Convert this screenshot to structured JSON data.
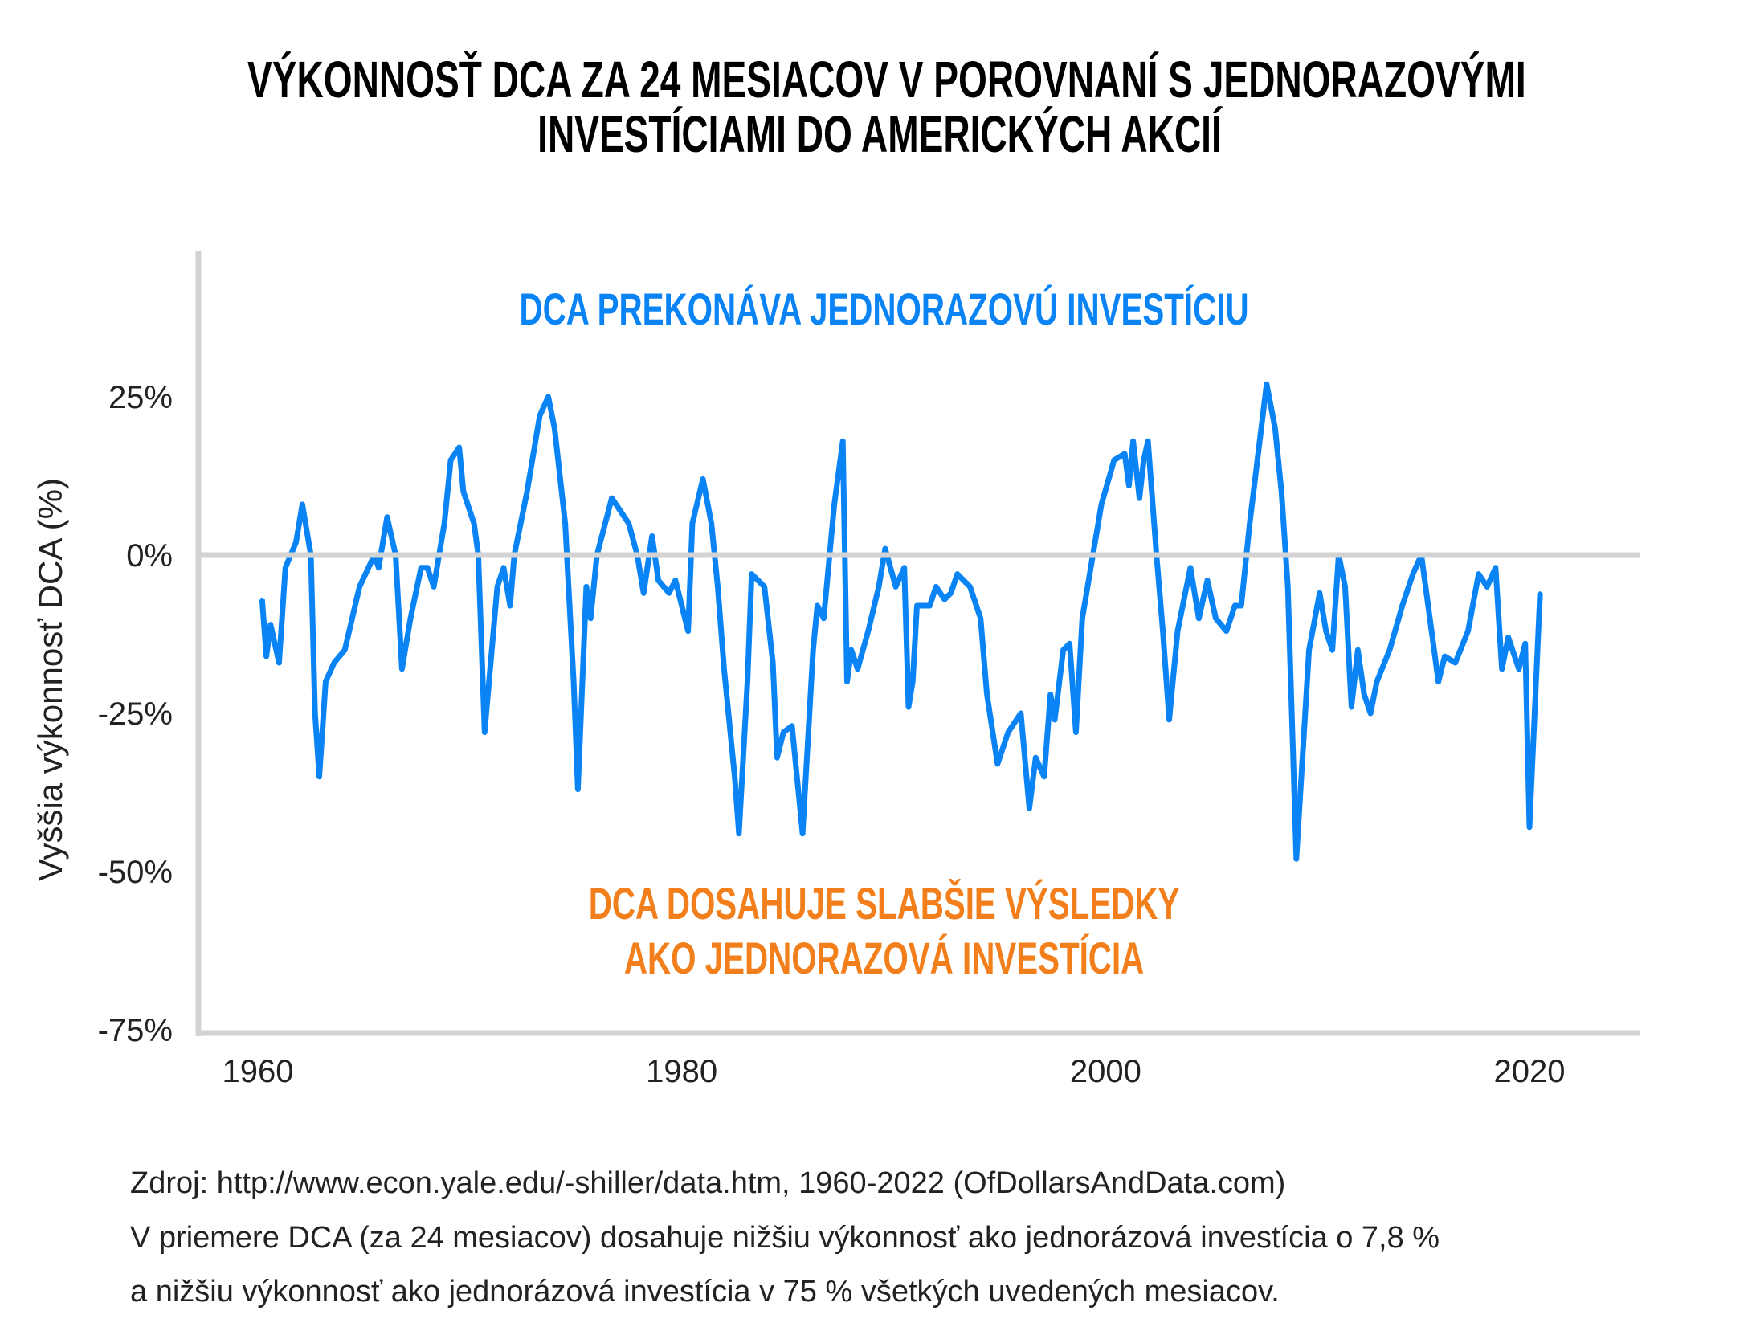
{
  "title": {
    "line1": "VÝKONNOSŤ DCA ZA 24 MESIACOV V POROVNANÍ S JEDNORAZOVÝMI",
    "line2": "INVESTÍCIAMI DO AMERICKÝCH AKCIÍ"
  },
  "annotations": {
    "top": "DCA PREKONÁVA JEDNORAZOVÚ INVESTÍCIU",
    "bottom_line1": "DCA DOSAHUJE SLABŠIE VÝSLEDKY",
    "bottom_line2": "AKO JEDNORAZOVÁ INVESTÍCIA"
  },
  "footer": {
    "source": "Zdroj: http://www.econ.yale.edu/-shiller/data.htm, 1960-2022 (OfDollarsAndData.com)",
    "note_line1": "V priemere DCA (za 24 mesiacov) dosahuje nižšiu výkonnosť ako jednorázová investícia o 7,8 %",
    "note_line2": "a nižšiu výkonnosť ako jednorázová investícia v 75 % všetkých uvedených mesiacov."
  },
  "colors": {
    "series": "#0a84f5",
    "positive_label": "#0a84f5",
    "negative_label": "#f27f1b",
    "axis": "#d3d3d3"
  },
  "chart_data": {
    "type": "line",
    "ylabel": "Vyššia výkonnosť DCA (%)",
    "xlabel": "",
    "xlim": [
      1958,
      2025
    ],
    "ylim": [
      -75,
      40
    ],
    "x_ticks": [
      {
        "value": 1960,
        "label": "1960"
      },
      {
        "value": 1980,
        "label": "1980"
      },
      {
        "value": 2000,
        "label": "2000"
      },
      {
        "value": 2020,
        "label": "2020"
      }
    ],
    "y_ticks": [
      {
        "value": 25,
        "label": "25%"
      },
      {
        "value": 0,
        "label": "0%"
      },
      {
        "value": -25,
        "label": "-25%"
      },
      {
        "value": -50,
        "label": "-50%"
      },
      {
        "value": -75,
        "label": "-75%"
      }
    ],
    "grid": false,
    "reference_line": 0,
    "points": [
      [
        1960.2,
        -7
      ],
      [
        1960.4,
        -16
      ],
      [
        1960.6,
        -11
      ],
      [
        1961.0,
        -17
      ],
      [
        1961.3,
        -2
      ],
      [
        1961.8,
        2
      ],
      [
        1962.1,
        8
      ],
      [
        1962.5,
        0
      ],
      [
        1962.7,
        -25
      ],
      [
        1962.9,
        -35
      ],
      [
        1963.2,
        -20
      ],
      [
        1963.6,
        -17
      ],
      [
        1964.1,
        -15
      ],
      [
        1964.8,
        -5
      ],
      [
        1965.5,
        0
      ],
      [
        1965.7,
        -2
      ],
      [
        1966.1,
        6
      ],
      [
        1966.5,
        0
      ],
      [
        1966.8,
        -18
      ],
      [
        1967.2,
        -10
      ],
      [
        1967.7,
        -2
      ],
      [
        1968.0,
        -2
      ],
      [
        1968.3,
        -5
      ],
      [
        1968.8,
        5
      ],
      [
        1969.1,
        15
      ],
      [
        1969.5,
        17
      ],
      [
        1969.7,
        10
      ],
      [
        1970.2,
        5
      ],
      [
        1970.4,
        0
      ],
      [
        1970.7,
        -28
      ],
      [
        1971.3,
        -5
      ],
      [
        1971.6,
        -2
      ],
      [
        1971.9,
        -8
      ],
      [
        1972.1,
        0
      ],
      [
        1972.7,
        10
      ],
      [
        1973.3,
        22
      ],
      [
        1973.7,
        25
      ],
      [
        1974.0,
        20
      ],
      [
        1974.5,
        5
      ],
      [
        1974.9,
        -20
      ],
      [
        1975.1,
        -37
      ],
      [
        1975.5,
        -5
      ],
      [
        1975.7,
        -10
      ],
      [
        1976.0,
        0
      ],
      [
        1976.7,
        9
      ],
      [
        1977.5,
        5
      ],
      [
        1977.9,
        0
      ],
      [
        1978.2,
        -6
      ],
      [
        1978.6,
        3
      ],
      [
        1978.9,
        -4
      ],
      [
        1979.4,
        -6
      ],
      [
        1979.7,
        -4
      ],
      [
        1980.0,
        -8
      ],
      [
        1980.3,
        -12
      ],
      [
        1980.5,
        5
      ],
      [
        1981.0,
        12
      ],
      [
        1981.4,
        5
      ],
      [
        1981.7,
        -5
      ],
      [
        1982.0,
        -18
      ],
      [
        1982.5,
        -35
      ],
      [
        1982.7,
        -44
      ],
      [
        1983.1,
        -20
      ],
      [
        1983.3,
        -3
      ],
      [
        1983.9,
        -5
      ],
      [
        1984.3,
        -17
      ],
      [
        1984.5,
        -32
      ],
      [
        1984.8,
        -28
      ],
      [
        1985.2,
        -27
      ],
      [
        1985.7,
        -44
      ],
      [
        1986.2,
        -15
      ],
      [
        1986.4,
        -8
      ],
      [
        1986.7,
        -10
      ],
      [
        1987.2,
        8
      ],
      [
        1987.6,
        18
      ],
      [
        1987.8,
        -20
      ],
      [
        1988.0,
        -15
      ],
      [
        1988.3,
        -18
      ],
      [
        1988.8,
        -12
      ],
      [
        1989.3,
        -5
      ],
      [
        1989.6,
        1
      ],
      [
        1990.1,
        -5
      ],
      [
        1990.5,
        -2
      ],
      [
        1990.7,
        -24
      ],
      [
        1990.9,
        -20
      ],
      [
        1991.1,
        -8
      ],
      [
        1991.7,
        -8
      ],
      [
        1992.0,
        -5
      ],
      [
        1992.4,
        -7
      ],
      [
        1992.7,
        -6
      ],
      [
        1993.0,
        -3
      ],
      [
        1993.6,
        -5
      ],
      [
        1994.1,
        -10
      ],
      [
        1994.4,
        -22
      ],
      [
        1994.9,
        -33
      ],
      [
        1995.4,
        -28
      ],
      [
        1996.0,
        -25
      ],
      [
        1996.4,
        -40
      ],
      [
        1996.7,
        -32
      ],
      [
        1997.1,
        -35
      ],
      [
        1997.4,
        -22
      ],
      [
        1997.6,
        -26
      ],
      [
        1998.0,
        -15
      ],
      [
        1998.3,
        -14
      ],
      [
        1998.6,
        -28
      ],
      [
        1998.9,
        -10
      ],
      [
        1999.4,
        0
      ],
      [
        1999.8,
        8
      ],
      [
        2000.4,
        15
      ],
      [
        2000.9,
        16
      ],
      [
        2001.1,
        11
      ],
      [
        2001.3,
        18
      ],
      [
        2001.6,
        9
      ],
      [
        2001.8,
        15
      ],
      [
        2002.0,
        18
      ],
      [
        2002.4,
        0
      ],
      [
        2002.7,
        -12
      ],
      [
        2003.0,
        -26
      ],
      [
        2003.4,
        -12
      ],
      [
        2004.0,
        -2
      ],
      [
        2004.4,
        -10
      ],
      [
        2004.8,
        -4
      ],
      [
        2005.2,
        -10
      ],
      [
        2005.7,
        -12
      ],
      [
        2006.1,
        -8
      ],
      [
        2006.4,
        -8
      ],
      [
        2006.8,
        5
      ],
      [
        2007.6,
        27
      ],
      [
        2008.0,
        20
      ],
      [
        2008.3,
        10
      ],
      [
        2008.6,
        -5
      ],
      [
        2009.0,
        -48
      ],
      [
        2009.6,
        -15
      ],
      [
        2010.1,
        -6
      ],
      [
        2010.4,
        -12
      ],
      [
        2010.7,
        -15
      ],
      [
        2011.0,
        0
      ],
      [
        2011.3,
        -5
      ],
      [
        2011.6,
        -24
      ],
      [
        2011.9,
        -15
      ],
      [
        2012.2,
        -22
      ],
      [
        2012.5,
        -25
      ],
      [
        2012.8,
        -20
      ],
      [
        2013.4,
        -15
      ],
      [
        2014.0,
        -8
      ],
      [
        2014.5,
        -3
      ],
      [
        2014.9,
        0
      ],
      [
        2015.3,
        -10
      ],
      [
        2015.7,
        -20
      ],
      [
        2016.0,
        -16
      ],
      [
        2016.5,
        -17
      ],
      [
        2017.1,
        -12
      ],
      [
        2017.6,
        -3
      ],
      [
        2018.0,
        -5
      ],
      [
        2018.4,
        -2
      ],
      [
        2018.7,
        -18
      ],
      [
        2019.0,
        -13
      ],
      [
        2019.5,
        -18
      ],
      [
        2019.8,
        -14
      ],
      [
        2020.0,
        -43
      ],
      [
        2020.5,
        -6
      ]
    ]
  }
}
